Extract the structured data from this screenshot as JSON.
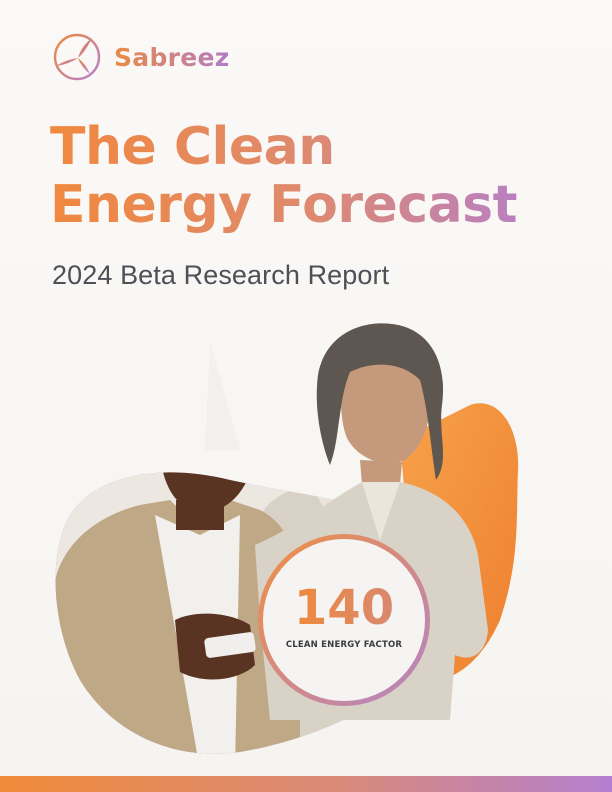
{
  "brand": {
    "name": "Sabreez",
    "logo_icon": "wind-turbine-icon"
  },
  "cover": {
    "title_line1": "The Clean",
    "title_line2": "Energy Forecast",
    "subtitle": "2024 Beta Research Report"
  },
  "stat": {
    "value": "140",
    "label": "CLEAN ENERGY FACTOR"
  },
  "colors": {
    "orange": "#F0883E",
    "pink": "#DE8A75",
    "purple": "#B47FD0",
    "text_gray": "#4F4F57"
  }
}
